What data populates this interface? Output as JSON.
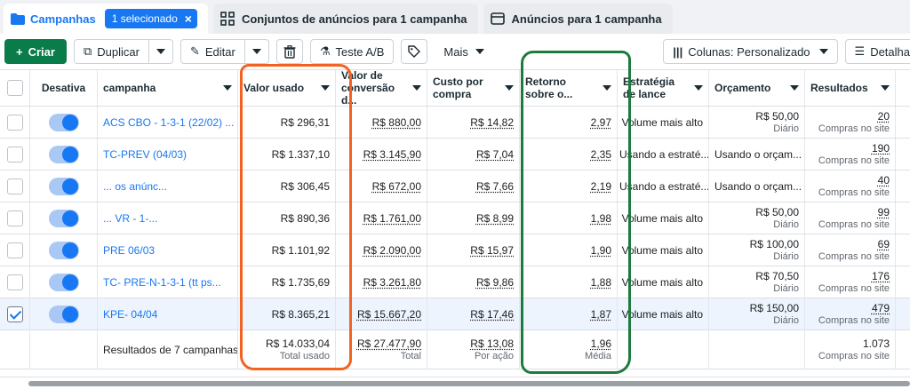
{
  "tabs": {
    "campaigns": "Campanhas",
    "selected_chip": "1 selecionado",
    "ad_sets": "Conjuntos de anúncios para 1 campanha",
    "ads": "Anúncios para 1 campanha"
  },
  "toolbar": {
    "create": "Criar",
    "duplicate": "Duplicar",
    "edit": "Editar",
    "ab_test": "Teste A/B",
    "more": "Mais",
    "columns": "Colunas: Personalizado",
    "details": "Detalha"
  },
  "headers": {
    "toggle": "Desativa",
    "campaign": "campanha",
    "spend": "Valor usado",
    "conversion_value": "Valor de conversão d...",
    "cost_per_purchase": "Custo por compra",
    "roas": "Retorno sobre o...",
    "bid_strategy": "Estratégia de lance",
    "budget": "Orçamento",
    "results": "Resultados"
  },
  "rows": [
    {
      "name": "ACS CBO - 1-3-1 (22/02) ...",
      "spend": "R$ 296,31",
      "conv": "R$ 880,00",
      "cpp": "R$ 14,82",
      "roas": "2,97",
      "strategy": "Volume mais alto",
      "budget": "R$ 50,00",
      "budget_sub": "Diário",
      "results": "20",
      "results_sub": "Compras no site",
      "selected": false
    },
    {
      "name": "TC-PREV (04/03)",
      "spend": "R$ 1.337,10",
      "conv": "R$ 3.145,90",
      "cpp": "R$ 7,04",
      "roas": "2,35",
      "strategy": "Usando a estraté...",
      "budget": "Usando o orçam...",
      "budget_sub": "",
      "results": "190",
      "results_sub": "Compras no site",
      "selected": false
    },
    {
      "name": "... os anúnc...",
      "spend": "R$ 306,45",
      "conv": "R$ 672,00",
      "cpp": "R$ 7,66",
      "roas": "2,19",
      "strategy": "Usando a estraté...",
      "budget": "Usando o orçam...",
      "budget_sub": "",
      "results": "40",
      "results_sub": "Compras no site",
      "selected": false
    },
    {
      "name": "... VR - 1-...",
      "spend": "R$ 890,36",
      "conv": "R$ 1.761,00",
      "cpp": "R$ 8,99",
      "roas": "1,98",
      "strategy": "Volume mais alto",
      "budget": "R$ 50,00",
      "budget_sub": "Diário",
      "results": "99",
      "results_sub": "Compras no site",
      "selected": false
    },
    {
      "name": "PRE 06/03",
      "spend": "R$ 1.101,92",
      "conv": "R$ 2.090,00",
      "cpp": "R$ 15,97",
      "roas": "1,90",
      "strategy": "Volume mais alto",
      "budget": "R$ 100,00",
      "budget_sub": "Diário",
      "results": "69",
      "results_sub": "Compras no site",
      "selected": false
    },
    {
      "name": "TC- PRE-N-1-3-1 (tt ps...",
      "spend": "R$ 1.735,69",
      "conv": "R$ 3.261,80",
      "cpp": "R$ 9,86",
      "roas": "1,88",
      "strategy": "Volume mais alto",
      "budget": "R$ 70,50",
      "budget_sub": "Diário",
      "results": "176",
      "results_sub": "Compras no site",
      "selected": false
    },
    {
      "name": "KPE- 04/04",
      "spend": "R$ 8.365,21",
      "conv": "R$ 15.667,20",
      "cpp": "R$ 17,46",
      "roas": "1,87",
      "strategy": "Volume mais alto",
      "budget": "R$ 150,00",
      "budget_sub": "Diário",
      "results": "479",
      "results_sub": "Compras no site",
      "selected": true
    }
  ],
  "totals": {
    "label": "Resultados de 7 campanhas",
    "spend": "R$ 14.033,04",
    "spend_sub": "Total usado",
    "conv": "R$ 27.477,90",
    "conv_sub": "Total",
    "cpp": "R$ 13,08",
    "cpp_sub": "Por ação",
    "roas": "1,96",
    "roas_sub": "Média",
    "results": "1.073",
    "results_sub": "Compras no site"
  },
  "colors": {
    "accent": "#1877f2",
    "create": "#0a7c4a",
    "annotation_orange": "#f26322",
    "annotation_green": "#1f7a3e"
  }
}
